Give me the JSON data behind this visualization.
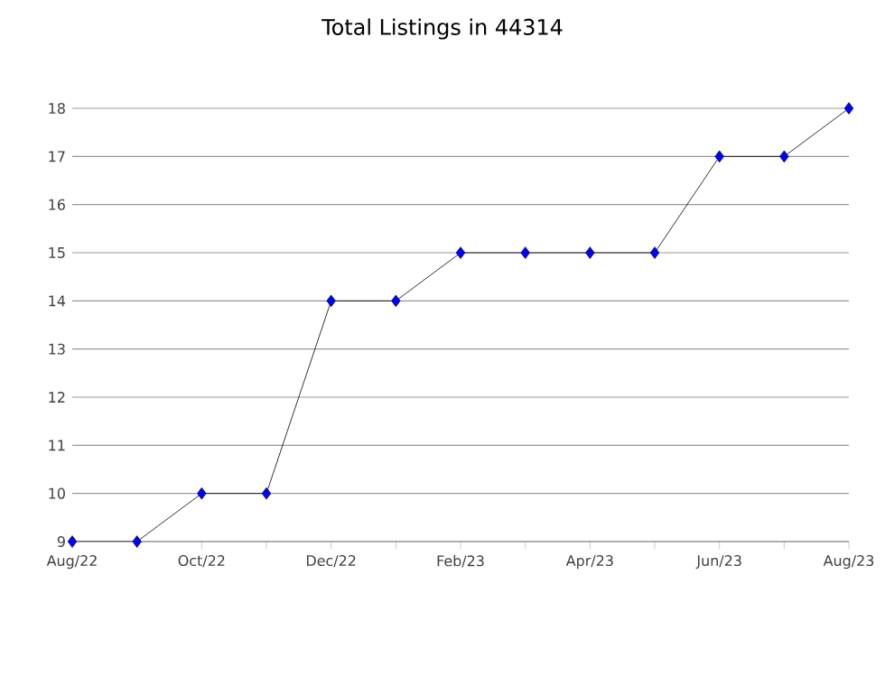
{
  "chart_data": {
    "type": "line",
    "title": "Total Listings in 44314",
    "categories": [
      "Aug/22",
      null,
      "Oct/22",
      null,
      "Dec/22",
      null,
      "Feb/23",
      null,
      "Apr/23",
      null,
      "Jun/23",
      null,
      "Aug/23"
    ],
    "series": [
      {
        "color": "#0000ff",
        "values": [
          9,
          9,
          10,
          10,
          14,
          14,
          15,
          15,
          15,
          15,
          17,
          17,
          18
        ]
      }
    ],
    "ylim": [
      9,
      18
    ],
    "yticks": [
      9,
      10,
      11,
      12,
      13,
      14,
      15,
      16,
      17,
      18
    ],
    "grid": "y",
    "marker": "diamond",
    "line_style": "solid"
  }
}
